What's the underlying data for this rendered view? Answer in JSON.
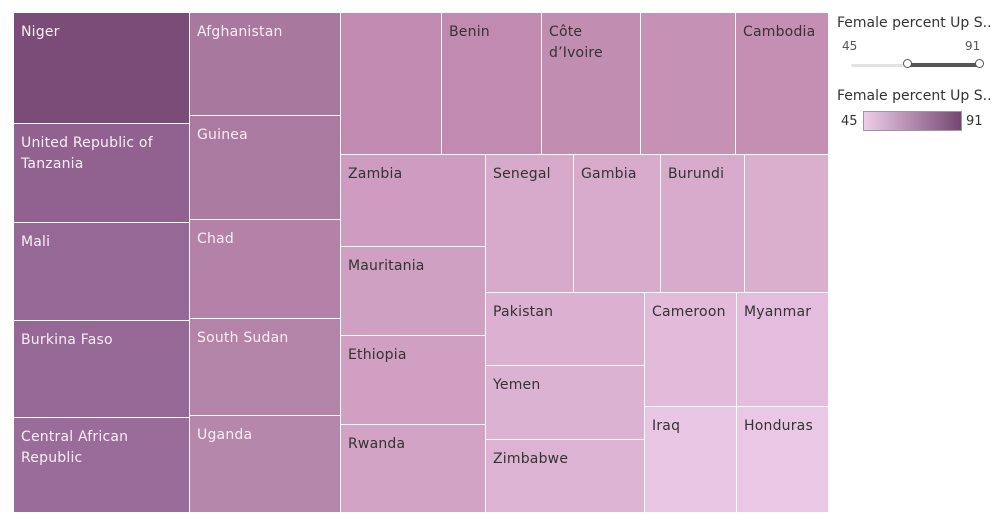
{
  "chart_data": {
    "type": "treemap",
    "tiles": [
      {
        "label": "Niger",
        "color": "#7b4c78",
        "dark": true
      },
      {
        "label": "United Republic of Tanzania",
        "color": "#91628f",
        "dark": true
      },
      {
        "label": "Mali",
        "color": "#966895",
        "dark": true
      },
      {
        "label": "Burkina Faso",
        "color": "#966896",
        "dark": true
      },
      {
        "label": "Central African Republic",
        "color": "#9a6c99",
        "dark": true
      },
      {
        "label": "Afghanistan",
        "color": "#a9789f",
        "dark": true
      },
      {
        "label": "Guinea",
        "color": "#ab7aa1",
        "dark": true
      },
      {
        "label": "Chad",
        "color": "#b482a8",
        "dark": true
      },
      {
        "label": "South Sudan",
        "color": "#b483a8",
        "dark": true
      },
      {
        "label": "Uganda",
        "color": "#b587aa",
        "dark": true
      },
      {
        "label": "",
        "color": "#c18ab0",
        "dark": false
      },
      {
        "label": "Benin",
        "color": "#c18bb1",
        "dark": false
      },
      {
        "label": "Côte d’Ivoire",
        "color": "#c18db1",
        "dark": false
      },
      {
        "label": "",
        "color": "#c592b5",
        "dark": false
      },
      {
        "label": "Cambodia",
        "color": "#c58eb3",
        "dark": false
      },
      {
        "label": "Zambia",
        "color": "#cd9cc0",
        "dark": false
      },
      {
        "label": "Mauritania",
        "color": "#cfa0c2",
        "dark": false
      },
      {
        "label": "Ethiopia",
        "color": "#d09fc2",
        "dark": false
      },
      {
        "label": "Rwanda",
        "color": "#d2a3c4",
        "dark": false
      },
      {
        "label": "Senegal",
        "color": "#d7a9ca",
        "dark": false
      },
      {
        "label": "Gambia",
        "color": "#d8abcc",
        "dark": false
      },
      {
        "label": "Burundi",
        "color": "#d8abcc",
        "dark": false
      },
      {
        "label": "",
        "color": "#daaecd",
        "dark": false
      },
      {
        "label": "Pakistan",
        "color": "#dcb0d1",
        "dark": false
      },
      {
        "label": "Yemen",
        "color": "#dcb2d3",
        "dark": false
      },
      {
        "label": "Zimbabwe",
        "color": "#dcb3d3",
        "dark": false
      },
      {
        "label": "Cameroon",
        "color": "#e3bada",
        "dark": false
      },
      {
        "label": "Myanmar",
        "color": "#e4bcdd",
        "dark": false
      },
      {
        "label": "Iraq",
        "color": "#eac6e5",
        "dark": false
      },
      {
        "label": "Honduras",
        "color": "#eac8e5",
        "dark": false
      }
    ]
  },
  "legend": {
    "slider_title": "Female percent Up S..",
    "slider_min": "45",
    "slider_max": "91",
    "slider_low_fraction": 0.44,
    "slider_high_fraction": 1.0,
    "color_title": "Female percent Up S..",
    "color_min": "45",
    "color_max": "91",
    "color_low": "#eecdea",
    "color_high": "#744772"
  },
  "colors": {
    "light_text": "#f7eef6",
    "dark_text": "#333333"
  }
}
